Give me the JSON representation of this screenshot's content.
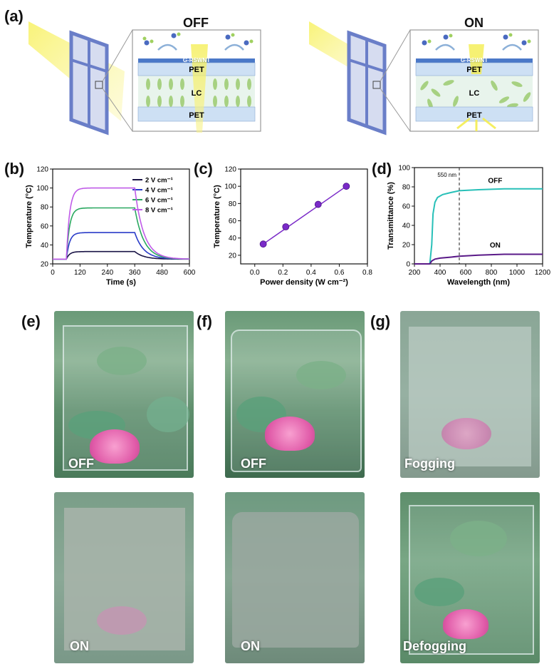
{
  "panels": {
    "a": {
      "label": "(a)",
      "off_title": "OFF",
      "on_title": "ON",
      "layers": {
        "electrode": "G-RSWNT",
        "top": "PET",
        "middle": "LC",
        "bottom": "PET"
      }
    },
    "b": {
      "label": "(b)"
    },
    "c": {
      "label": "(c)"
    },
    "d": {
      "label": "(d)",
      "annotation": "550 nm"
    },
    "e": {
      "label": "(e)",
      "top_caption": "OFF",
      "bottom_caption": "ON"
    },
    "f": {
      "label": "(f)",
      "top_caption": "OFF",
      "bottom_caption": "ON"
    },
    "g": {
      "label": "(g)",
      "top_caption": "Fogging",
      "bottom_caption": "Defogging"
    }
  },
  "colors": {
    "series_2V": "#1a1446",
    "series_4V": "#2a3cc8",
    "series_6V": "#2aa860",
    "series_8V": "#c05ce8",
    "point_c": "#7a2ac8",
    "off_curve": "#28c0b8",
    "on_curve": "#5a1a88"
  },
  "chart_data": [
    {
      "type": "line",
      "xlabel": "Time (s)",
      "ylabel": "Temperature (°C)",
      "xlim": [
        0,
        600
      ],
      "ylim": [
        20,
        120
      ],
      "xticks": [
        "0",
        "120",
        "240",
        "360",
        "480",
        "600"
      ],
      "yticks": [
        "20",
        "40",
        "60",
        "80",
        "100",
        "120"
      ],
      "legend_placement": "top-right",
      "series": [
        {
          "name": "2 V cm⁻¹",
          "plateau": 33
        },
        {
          "name": "4 V cm⁻¹",
          "plateau": 53
        },
        {
          "name": "6 V cm⁻¹",
          "plateau": 79
        },
        {
          "name": "8 V cm⁻¹",
          "plateau": 100
        }
      ],
      "baseline": 25,
      "on_time": 60,
      "off_time": 360
    },
    {
      "type": "scatter",
      "xlabel": "Power density (W cm⁻²)",
      "ylabel": "Temperature (°C)",
      "xlim": [
        -0.1,
        0.8
      ],
      "ylim": [
        10,
        120
      ],
      "xticks": [
        "0.0",
        "0.2",
        "0.4",
        "0.6",
        "0.8"
      ],
      "yticks": [
        "20",
        "40",
        "60",
        "80",
        "100",
        "120"
      ],
      "x": [
        0.06,
        0.22,
        0.45,
        0.65
      ],
      "y": [
        33,
        53,
        79,
        100
      ],
      "fit_line": true
    },
    {
      "type": "line",
      "xlabel": "Wavelength (nm)",
      "ylabel": "Transmittance (%)",
      "xlim": [
        200,
        1200
      ],
      "ylim": [
        0,
        100
      ],
      "xticks": [
        "200",
        "400",
        "600",
        "800",
        "1000",
        "1200"
      ],
      "yticks": [
        "0",
        "20",
        "40",
        "60",
        "80",
        "100"
      ],
      "series": [
        {
          "name": "OFF",
          "x": [
            200,
            320,
            335,
            345,
            360,
            380,
            420,
            480,
            550,
            700,
            900,
            1200
          ],
          "y": [
            0,
            0,
            20,
            52,
            64,
            69,
            72,
            74,
            76,
            77,
            78,
            78
          ]
        },
        {
          "name": "ON",
          "x": [
            200,
            320,
            335,
            360,
            400,
            480,
            550,
            700,
            900,
            1200
          ],
          "y": [
            0,
            0,
            3,
            5,
            6,
            7,
            8,
            9,
            10,
            10
          ]
        }
      ],
      "vline_x": 550
    }
  ]
}
